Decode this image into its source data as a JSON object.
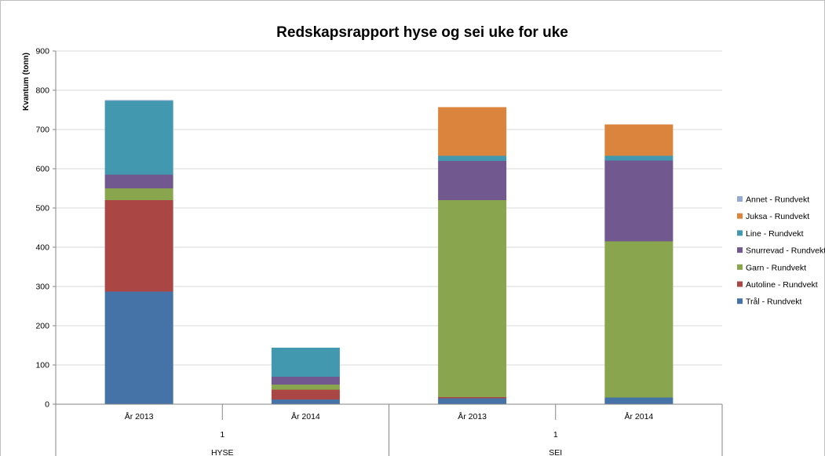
{
  "chart_data": {
    "type": "bar",
    "stacked": true,
    "title": "Redskapsrapport hyse og sei uke for uke",
    "ylabel": "Kvantum (tonn)",
    "xlabel": "",
    "ylim": [
      0,
      900
    ],
    "yticks": [
      "0",
      "100",
      "200",
      "300",
      "400",
      "500",
      "600",
      "700",
      "800",
      "900"
    ],
    "grid": true,
    "legend_position": "right",
    "categories": [
      "År 2013",
      "År 2014",
      "År 2013",
      "År 2014"
    ],
    "groups": [
      {
        "week": "1",
        "name": "HYSE"
      },
      {
        "week": "1",
        "name": "SEI"
      }
    ],
    "series": [
      {
        "name": "Trål - Rundvekt",
        "color": "#4572A7",
        "values": [
          287,
          12,
          15,
          17
        ]
      },
      {
        "name": "Autoline - Rundvekt",
        "color": "#AA4643",
        "values": [
          233,
          25,
          3,
          0
        ]
      },
      {
        "name": "Garn - Rundvekt",
        "color": "#89A54E",
        "values": [
          30,
          13,
          502,
          398
        ]
      },
      {
        "name": "Snurrevad - Rundvekt",
        "color": "#71588F",
        "values": [
          35,
          20,
          100,
          206
        ]
      },
      {
        "name": "Line - Rundvekt",
        "color": "#4198AF",
        "values": [
          188,
          74,
          13,
          12
        ]
      },
      {
        "name": "Juksa - Rundvekt",
        "color": "#DB843D",
        "values": [
          0,
          0,
          124,
          80
        ]
      },
      {
        "name": "Annet - Rundvekt",
        "color": "#93A9CF",
        "values": [
          2,
          0,
          0,
          0
        ]
      }
    ]
  }
}
